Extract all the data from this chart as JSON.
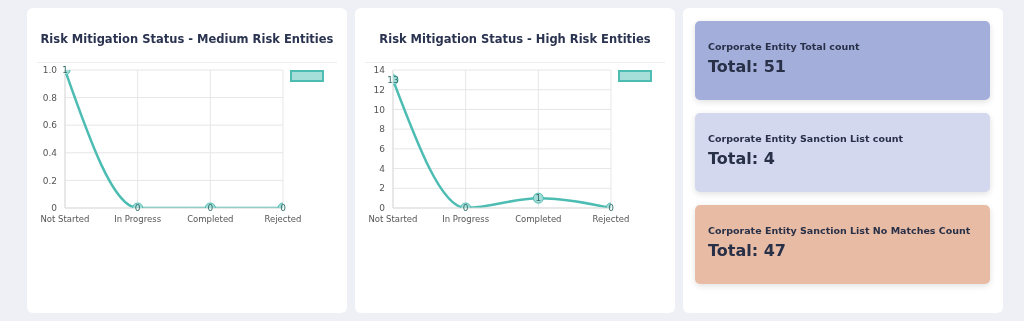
{
  "chart_data": [
    {
      "type": "line",
      "title": "Risk Mitigation Status - Medium Risk Entities",
      "categories": [
        "Not Started",
        "In Progress",
        "Completed",
        "Rejected"
      ],
      "series": [
        {
          "color": "#4dbdb3",
          "values": [
            1,
            0,
            0,
            0
          ]
        }
      ],
      "ylim": [
        0,
        1
      ],
      "yticks": [
        0,
        0.2,
        0.4,
        0.6,
        0.8,
        {
          "value": 1,
          "label": "1.0"
        }
      ],
      "grid": true,
      "marker": "circle",
      "line_style": "solid",
      "data_labels": true
    },
    {
      "type": "line",
      "title": "Risk Mitigation Status - High Risk Entities",
      "categories": [
        "Not Started",
        "In Progress",
        "Completed",
        "Rejected"
      ],
      "series": [
        {
          "color": "#4dbdb3",
          "values": [
            13,
            0,
            1,
            0
          ]
        }
      ],
      "ylim": [
        0,
        14
      ],
      "yticks": [
        0,
        2,
        4,
        6,
        8,
        10,
        12,
        14
      ],
      "grid": true,
      "marker": "circle",
      "line_style": "solid",
      "data_labels": true
    },
    {
      "type": "other",
      "annotations": [
        "Corporate Entity Total count",
        "Total: 51",
        "Corporate Entity Sanction List count",
        "Total: 4",
        "Corporate Entity Sanction List No Matches Count",
        "Total: 47"
      ],
      "colors": [
        "#a3aedb",
        "#d3d8ee",
        "#e8bba5"
      ]
    }
  ]
}
